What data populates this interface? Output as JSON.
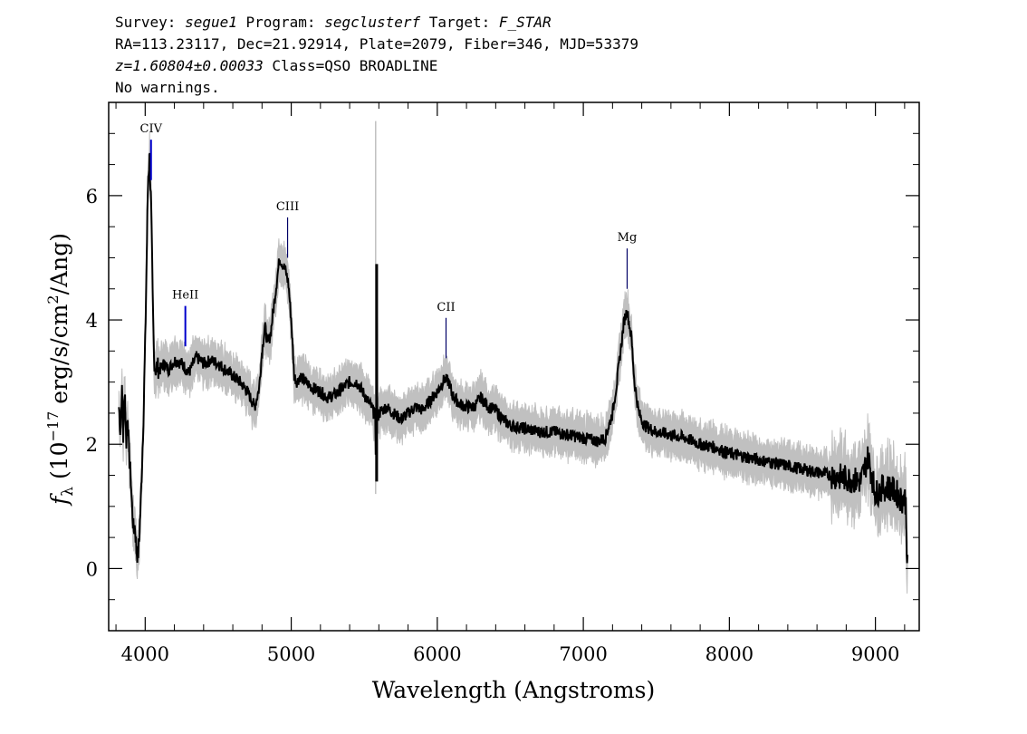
{
  "header": {
    "line1": [
      {
        "text": "Survey: ",
        "italic": false
      },
      {
        "text": "segue1",
        "italic": true
      },
      {
        "text": " Program: ",
        "italic": false
      },
      {
        "text": "segclusterf",
        "italic": true
      },
      {
        "text": " Target: ",
        "italic": false
      },
      {
        "text": "F_STAR",
        "italic": true
      }
    ],
    "line2": "RA=113.23117, Dec=21.92914, Plate=2079, Fiber=346, MJD=53379",
    "line3": [
      {
        "text": "z=1.60804±0.00033",
        "italic": true
      },
      {
        "text": " Class=QSO BROADLINE",
        "italic": false
      }
    ],
    "line4": "No warnings."
  },
  "chart_data": {
    "type": "line",
    "xlabel": "Wavelength (Angstroms)",
    "ylabel": {
      "f": "f",
      "sub": "λ",
      "pre": " (10",
      "exp1": "−17",
      "mid": " erg/s/cm",
      "exp2": "2",
      "post": "/Ang)"
    },
    "xlim": [
      3750,
      9300
    ],
    "ylim": [
      -1,
      7.5
    ],
    "xticks": [
      4000,
      5000,
      6000,
      7000,
      8000,
      9000
    ],
    "yticks": [
      0,
      2,
      4,
      6
    ],
    "colors": {
      "flux": "#000000",
      "error": "#c0c0c0",
      "line_marker_strong": "#0000cc",
      "line_marker_weak": "#000066"
    },
    "series": [
      {
        "values_x": [
          3820,
          3830,
          3840,
          3850,
          3860,
          3870,
          3880,
          3890,
          3900,
          3910,
          3920,
          3930,
          3940,
          3950,
          3960,
          3970,
          3980,
          3990,
          4000,
          4010,
          4020,
          4030,
          4040,
          4050,
          4060,
          4070,
          4080,
          4100,
          4130,
          4160,
          4200,
          4250,
          4300,
          4350,
          4400,
          4450,
          4500,
          4550,
          4600,
          4650,
          4700,
          4750,
          4780,
          4800,
          4820,
          4840,
          4860,
          4880,
          4900,
          4920,
          4940,
          4960,
          4980,
          5000,
          5020,
          5040,
          5060,
          5100,
          5150,
          5200,
          5250,
          5300,
          5350,
          5400,
          5450,
          5500,
          5550,
          5575,
          5580,
          5585,
          5590,
          5600,
          5650,
          5700,
          5750,
          5800,
          5850,
          5900,
          5950,
          6000,
          6050,
          6080,
          6100,
          6150,
          6200,
          6250,
          6300,
          6350,
          6400,
          6450,
          6500,
          6600,
          6700,
          6800,
          6900,
          7000,
          7100,
          7150,
          7200,
          7230,
          7260,
          7280,
          7300,
          7310,
          7330,
          7350,
          7380,
          7420,
          7500,
          7600,
          7700,
          7800,
          7900,
          8000,
          8100,
          8200,
          8300,
          8400,
          8500,
          8600,
          8700,
          8800,
          8900,
          8950,
          9000,
          9050,
          9100,
          9150,
          9180,
          9200,
          9210,
          9215,
          9220
        ],
        "values_y": [
          2.6,
          2.2,
          2.9,
          2.1,
          3.0,
          2.0,
          2.5,
          1.8,
          1.5,
          1.0,
          0.6,
          0.7,
          0.3,
          0.2,
          0.5,
          1.1,
          1.8,
          2.6,
          3.6,
          5.0,
          6.3,
          6.6,
          5.9,
          4.5,
          3.4,
          3.2,
          3.25,
          3.2,
          3.3,
          3.2,
          3.35,
          3.3,
          3.15,
          3.4,
          3.3,
          3.35,
          3.3,
          3.2,
          3.1,
          3.0,
          2.85,
          2.6,
          2.9,
          3.5,
          3.9,
          3.6,
          3.8,
          4.2,
          4.6,
          5.0,
          4.9,
          4.8,
          4.6,
          4.0,
          3.1,
          3.0,
          3.1,
          3.0,
          2.9,
          2.85,
          2.75,
          2.8,
          2.9,
          3.0,
          3.0,
          2.8,
          2.6,
          2.45,
          1.5,
          4.9,
          2.4,
          2.5,
          2.6,
          2.5,
          2.4,
          2.5,
          2.6,
          2.55,
          2.7,
          2.85,
          3.05,
          3.0,
          2.8,
          2.65,
          2.6,
          2.6,
          2.75,
          2.6,
          2.55,
          2.4,
          2.3,
          2.25,
          2.2,
          2.2,
          2.15,
          2.1,
          2.05,
          2.1,
          2.5,
          3.0,
          3.6,
          4.0,
          4.15,
          4.0,
          3.7,
          3.0,
          2.5,
          2.3,
          2.2,
          2.15,
          2.1,
          2.0,
          1.95,
          1.85,
          1.8,
          1.75,
          1.7,
          1.65,
          1.6,
          1.55,
          1.5,
          1.45,
          1.4,
          1.8,
          1.2,
          1.3,
          1.3,
          1.2,
          1.1,
          1.15,
          1.0,
          0.3,
          0.0
        ]
      }
    ],
    "lines": [
      {
        "label": "CIV",
        "x": 4040,
        "style": "strong"
      },
      {
        "label": "HeII",
        "x": 4275,
        "style": "strong"
      },
      {
        "label": "CIII",
        "x": 4975,
        "style": "weak"
      },
      {
        "label": "CII",
        "x": 6060,
        "style": "weak"
      },
      {
        "label": "Mg",
        "x": 7300,
        "style": "weak"
      }
    ]
  }
}
